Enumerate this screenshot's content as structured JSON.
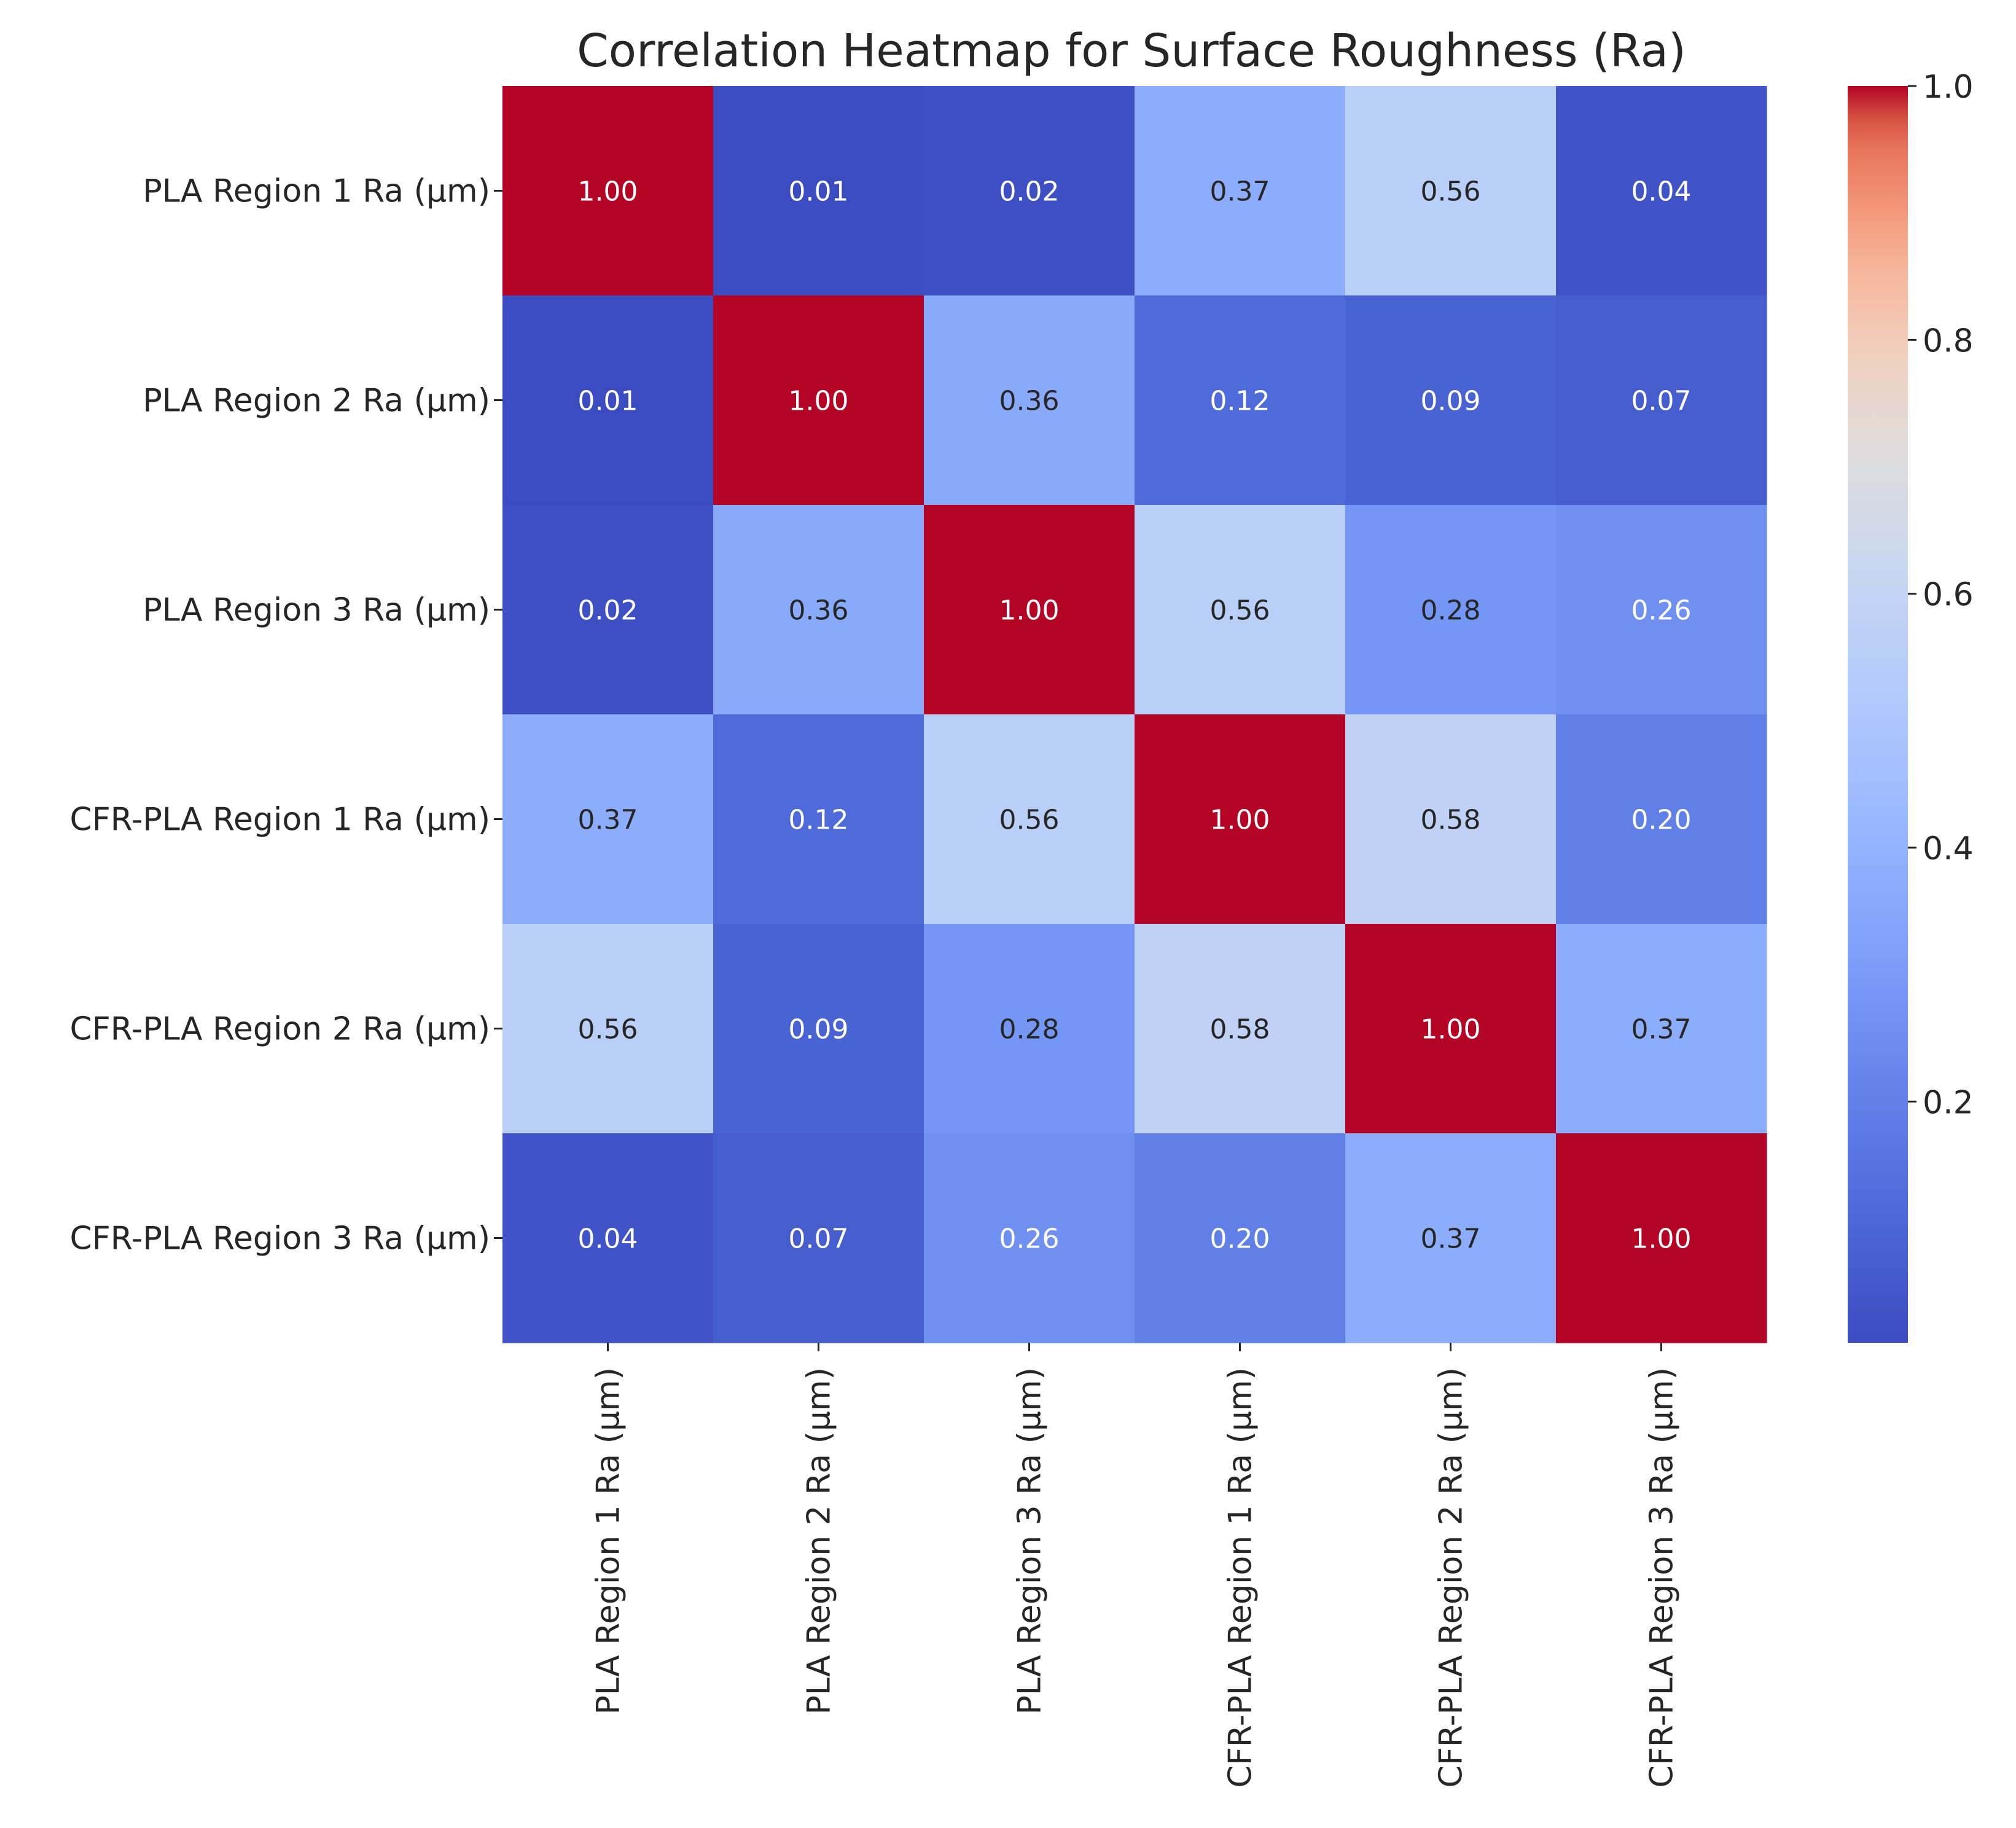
{
  "chart_data": {
    "type": "heatmap",
    "title": "Correlation Heatmap for Surface Roughness (Ra)",
    "row_labels": [
      "PLA Region 1 Ra (μm)",
      "PLA Region 2 Ra (μm)",
      "PLA Region 3 Ra (μm)",
      "CFR-PLA Region 1 Ra (μm)",
      "CFR-PLA Region 2 Ra (μm)",
      "CFR-PLA Region 3 Ra (μm)"
    ],
    "col_labels": [
      "PLA Region 1 Ra (μm)",
      "PLA Region 2 Ra (μm)",
      "PLA Region 3 Ra (μm)",
      "CFR-PLA Region 1 Ra (μm)",
      "CFR-PLA Region 2 Ra (μm)",
      "CFR-PLA Region 3 Ra (μm)"
    ],
    "values": [
      [
        1.0,
        0.01,
        0.02,
        0.37,
        0.56,
        0.04
      ],
      [
        0.01,
        1.0,
        0.36,
        0.12,
        0.09,
        0.07
      ],
      [
        0.02,
        0.36,
        1.0,
        0.56,
        0.28,
        0.26
      ],
      [
        0.37,
        0.12,
        0.56,
        1.0,
        0.58,
        0.2
      ],
      [
        0.56,
        0.09,
        0.28,
        0.58,
        1.0,
        0.37
      ],
      [
        0.04,
        0.07,
        0.26,
        0.2,
        0.37,
        1.0
      ]
    ],
    "value_format": "0.00",
    "colormap": "coolwarm",
    "colorbar": {
      "min": 0.01,
      "max": 1.0,
      "ticks": [
        0.2,
        0.4,
        0.6,
        0.8,
        1.0
      ],
      "tick_labels": [
        "0.2",
        "0.4",
        "0.6",
        "0.8",
        "1.0"
      ]
    },
    "grid": false,
    "legend": "colorbar-right"
  }
}
